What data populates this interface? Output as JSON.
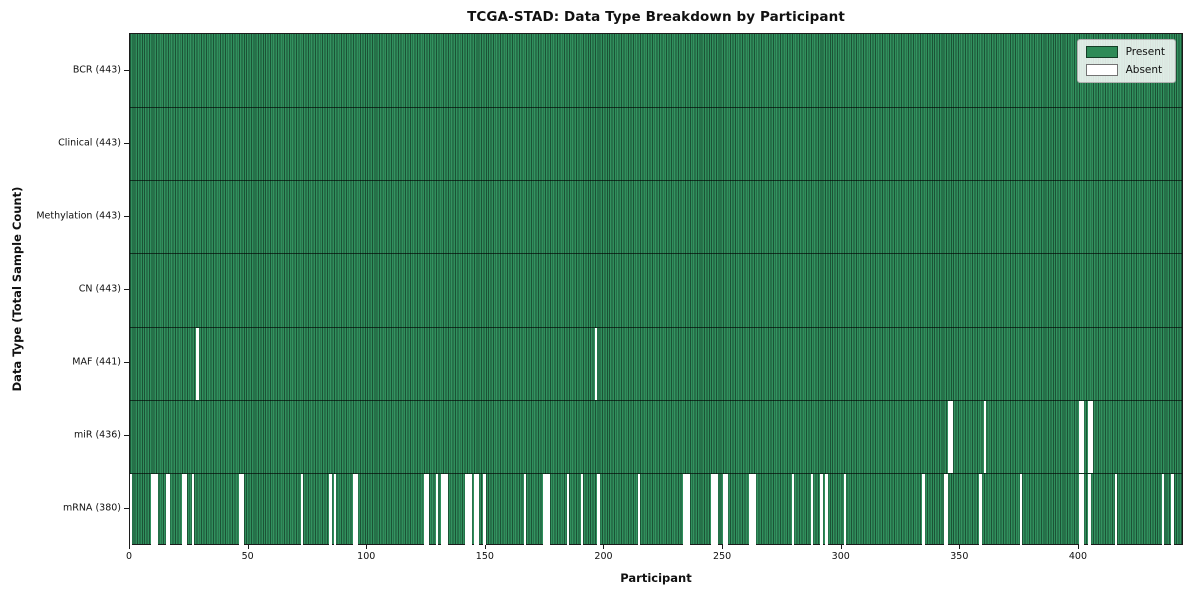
{
  "chart_data": {
    "type": "heatmap",
    "title": "TCGA-STAD: Data Type Breakdown by Participant",
    "xlabel": "Participant",
    "ylabel": "Data Type (Total Sample Count)",
    "n_participants": 443,
    "x_ticks": [
      0,
      50,
      100,
      150,
      200,
      250,
      300,
      350,
      400
    ],
    "x_range": [
      0,
      443
    ],
    "grid": false,
    "legend_position": "upper right",
    "legend": {
      "present_label": "Present",
      "absent_label": "Absent"
    },
    "colors": {
      "present": "#2e8b57",
      "absent": "#ffffff",
      "bar_edge": "rgba(0,0,0,0.45)",
      "frame": "#1c1c1c"
    },
    "rows": [
      {
        "name": "BCR",
        "label": "BCR (443)",
        "present_count": 443,
        "absent_participants": []
      },
      {
        "name": "Clinical",
        "label": "Clinical (443)",
        "present_count": 443,
        "absent_participants": []
      },
      {
        "name": "Methylation",
        "label": "Methylation (443)",
        "present_count": 443,
        "absent_participants": []
      },
      {
        "name": "CN",
        "label": "CN (443)",
        "present_count": 443,
        "absent_participants": []
      },
      {
        "name": "MAF",
        "label": "MAF (441)",
        "present_count": 441,
        "absent_participants": [
          28,
          196
        ]
      },
      {
        "name": "miR",
        "label": "miR (436)",
        "present_count": 436,
        "absent_participants": [
          345,
          346,
          360,
          400,
          401,
          404,
          405
        ]
      },
      {
        "name": "mRNA",
        "label": "mRNA (380)",
        "present_count": 380,
        "absent_participants": [
          0,
          9,
          10,
          11,
          15,
          16,
          22,
          23,
          26,
          46,
          47,
          72,
          84,
          86,
          94,
          95,
          124,
          125,
          129,
          131,
          132,
          133,
          141,
          142,
          143,
          145,
          146,
          149,
          166,
          174,
          175,
          176,
          184,
          190,
          197,
          214,
          233,
          234,
          235,
          245,
          246,
          247,
          250,
          251,
          261,
          262,
          263,
          279,
          287,
          291,
          293,
          301,
          334,
          343,
          344,
          358,
          375,
          400,
          401,
          404,
          415,
          435,
          439
        ]
      }
    ]
  }
}
